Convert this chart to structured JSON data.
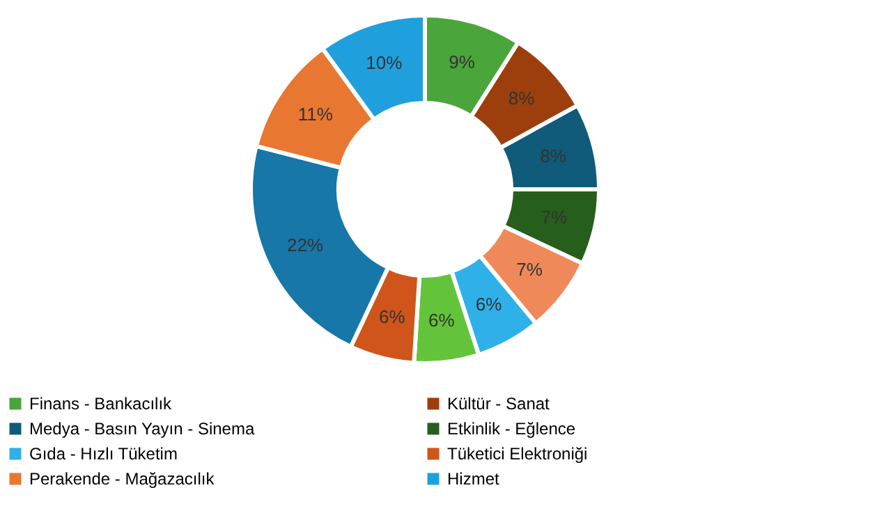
{
  "chart_data": {
    "type": "donut",
    "categories": [
      "Finans - Bankacılık",
      "Kültür - Sanat",
      "Medya - Basın Yayın - Sinema",
      "Etkinlik - Eğlence",
      null,
      "Gıda - Hızlı Tüketim",
      null,
      "Tüketici Elektroniği",
      null,
      "Perakende - Mağazacılık",
      "Hizmet"
    ],
    "values": [
      9,
      8,
      8,
      7,
      7,
      6,
      6,
      6,
      22,
      11,
      10
    ],
    "value_labels": [
      "9%",
      "8%",
      "8%",
      "7%",
      "7%",
      "6%",
      "6%",
      "6%",
      "22%",
      "11%",
      "10%"
    ],
    "colors": [
      "#4aa53a",
      "#9c3f0c",
      "#105a7a",
      "#265e1c",
      "#f0895a",
      "#2fb0e8",
      "#63c43b",
      "#d0551a",
      "#1677a8",
      "#e87732",
      "#1fa0dc"
    ],
    "legend": "bottom"
  }
}
